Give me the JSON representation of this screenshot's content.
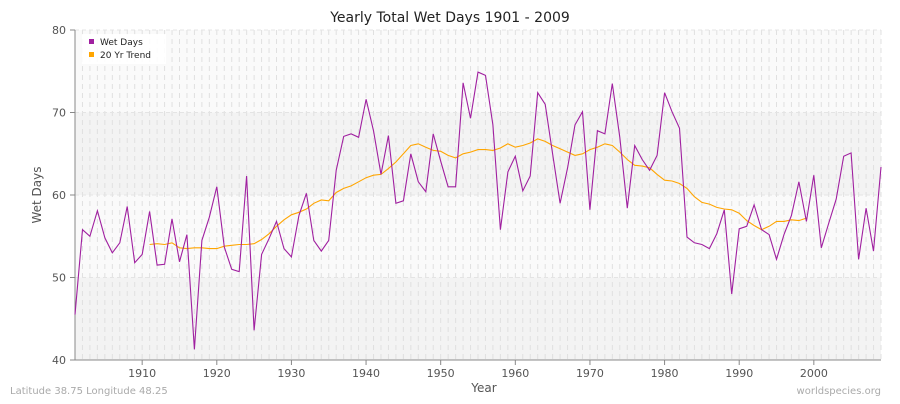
{
  "chart_data": {
    "type": "line",
    "title": "Yearly Total Wet Days 1901 - 2009",
    "xlabel": "Year",
    "ylabel": "Wet Days",
    "xlim": [
      1901,
      2009
    ],
    "ylim": [
      40,
      80
    ],
    "xticks": [
      1910,
      1920,
      1930,
      1940,
      1950,
      1960,
      1970,
      1980,
      1990,
      2000
    ],
    "yticks": [
      40,
      50,
      60,
      70,
      80
    ],
    "grid": true,
    "legend_placement": "top-left",
    "series": [
      {
        "name": "Wet Days",
        "color": "#a020a0",
        "start_year": 1901,
        "values": [
          45.5,
          55.8,
          55.0,
          58.1,
          54.8,
          53.0,
          54.2,
          58.6,
          51.8,
          52.8,
          58.0,
          51.5,
          51.6,
          57.1,
          51.9,
          55.2,
          41.3,
          54.5,
          57.3,
          61.0,
          53.7,
          51.0,
          50.7,
          62.3,
          43.6,
          52.8,
          54.7,
          56.8,
          53.5,
          52.5,
          57.5,
          60.2,
          54.5,
          53.2,
          54.5,
          63.0,
          67.1,
          67.4,
          67.0,
          71.6,
          67.8,
          62.5,
          67.2,
          59.0,
          59.3,
          65.0,
          61.6,
          60.4,
          67.4,
          64.1,
          61.0,
          61.0,
          73.6,
          69.3,
          74.9,
          74.5,
          68.5,
          55.8,
          62.8,
          64.7,
          60.5,
          62.3,
          72.4,
          71.0,
          65.0,
          59.0,
          63.3,
          68.5,
          70.1,
          58.2,
          67.8,
          67.4,
          73.5,
          67.0,
          58.4,
          66.0,
          64.3,
          63.0,
          64.8,
          72.4,
          70.1,
          68.1,
          54.9,
          54.2,
          54.0,
          53.5,
          55.3,
          58.2,
          48.0,
          55.9,
          56.2,
          58.8,
          55.8,
          55.2,
          52.2,
          55.2,
          57.5,
          61.6,
          56.8,
          62.4,
          53.6,
          56.6,
          59.5,
          64.7,
          65.1,
          52.2,
          58.4,
          53.2,
          63.4
        ]
      },
      {
        "name": "20 Yr Trend",
        "color": "#ffa500",
        "start_year": 1911,
        "values": [
          54.0,
          54.1,
          54.0,
          54.2,
          53.6,
          53.5,
          53.6,
          53.6,
          53.5,
          53.5,
          53.8,
          53.9,
          54.0,
          54.0,
          54.1,
          54.6,
          55.3,
          56.2,
          57.0,
          57.6,
          57.9,
          58.3,
          59.0,
          59.4,
          59.3,
          60.3,
          60.8,
          61.1,
          61.6,
          62.1,
          62.4,
          62.5,
          63.2,
          64.0,
          65.0,
          66.0,
          66.2,
          65.8,
          65.4,
          65.3,
          64.8,
          64.5,
          65.0,
          65.2,
          65.5,
          65.5,
          65.4,
          65.7,
          66.2,
          65.8,
          66.0,
          66.3,
          66.8,
          66.5,
          66.0,
          65.6,
          65.2,
          64.8,
          65.0,
          65.5,
          65.8,
          66.2,
          66.0,
          65.2,
          64.3,
          63.6,
          63.5,
          63.3,
          62.5,
          61.8,
          61.7,
          61.4,
          60.8,
          59.8,
          59.1,
          58.9,
          58.5,
          58.3,
          58.2,
          57.8,
          56.9,
          56.3,
          55.8,
          56.2,
          56.8,
          56.8,
          57.0,
          56.9,
          57.2
        ]
      }
    ]
  },
  "footer": {
    "left": "Latitude 38.75 Longitude 48.25",
    "right": "worldspecies.org"
  }
}
